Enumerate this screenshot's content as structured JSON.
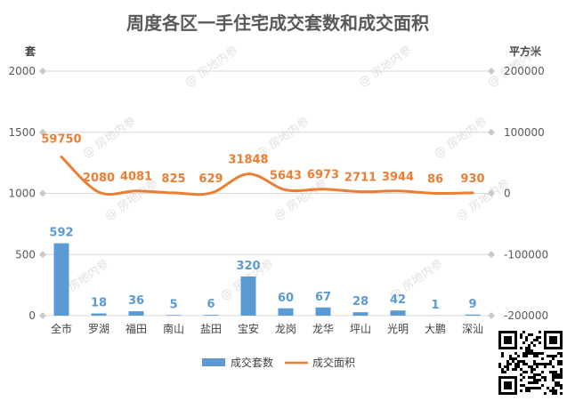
{
  "chart_data": {
    "type": "bar",
    "title": "周度各区一手住宅成交套数和成交面积",
    "ylabel": "套",
    "y2label": "平方米",
    "categories": [
      "全市",
      "罗湖",
      "福田",
      "南山",
      "盐田",
      "宝安",
      "龙岗",
      "龙华",
      "坪山",
      "光明",
      "大鹏",
      "深汕"
    ],
    "series": [
      {
        "name": "成交套数",
        "type": "bar",
        "axis": "left",
        "color": "#5b9bd5",
        "values": [
          592,
          18,
          36,
          5,
          6,
          320,
          60,
          67,
          28,
          42,
          1,
          9
        ]
      },
      {
        "name": "成交面积",
        "type": "line",
        "axis": "right",
        "color": "#ed7d31",
        "values": [
          59750,
          2080,
          4081,
          825,
          629,
          31848,
          5643,
          6973,
          2711,
          3944,
          86,
          930
        ]
      }
    ],
    "ylim": [
      0,
      2000
    ],
    "yticks": [
      "0",
      "500",
      "1000",
      "1500",
      "2000"
    ],
    "y2lim": [
      -200000,
      200000
    ],
    "y2ticks": [
      "-200000",
      "-100000",
      "0",
      "100000",
      "200000"
    ],
    "legend": "bottom",
    "grid": true
  },
  "watermark_text": "@ 房地内参"
}
